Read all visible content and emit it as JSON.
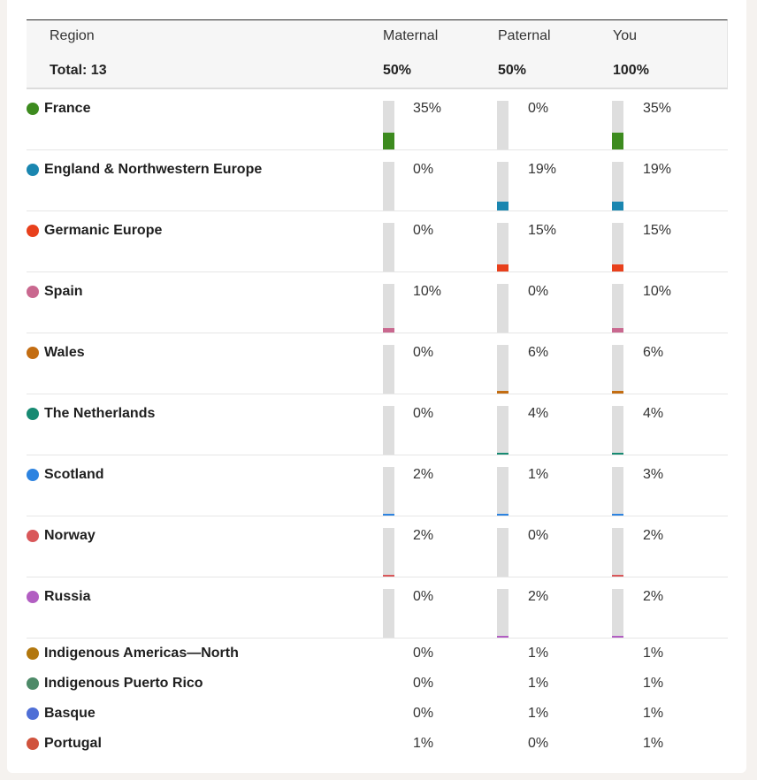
{
  "header": {
    "region_label": "Region",
    "maternal_label": "Maternal",
    "paternal_label": "Paternal",
    "you_label": "You",
    "total_label": "Total: 13",
    "maternal_total": "50%",
    "paternal_total": "50%",
    "you_total": "100%"
  },
  "rows": [
    {
      "name": "France",
      "color": "#3d8b1f",
      "maternal": "35%",
      "paternal": "0%",
      "you": "35%",
      "m": 35,
      "p": 0,
      "y": 35
    },
    {
      "name": "England & Northwestern Europe",
      "color": "#1a86b0",
      "maternal": "0%",
      "paternal": "19%",
      "you": "19%",
      "m": 0,
      "p": 19,
      "y": 19
    },
    {
      "name": "Germanic Europe",
      "color": "#e8401c",
      "maternal": "0%",
      "paternal": "15%",
      "you": "15%",
      "m": 0,
      "p": 15,
      "y": 15
    },
    {
      "name": "Spain",
      "color": "#c9688f",
      "maternal": "10%",
      "paternal": "0%",
      "you": "10%",
      "m": 10,
      "p": 0,
      "y": 10
    },
    {
      "name": "Wales",
      "color": "#c36d12",
      "maternal": "0%",
      "paternal": "6%",
      "you": "6%",
      "m": 0,
      "p": 6,
      "y": 6
    },
    {
      "name": "The Netherlands",
      "color": "#178a72",
      "maternal": "0%",
      "paternal": "4%",
      "you": "4%",
      "m": 0,
      "p": 4,
      "y": 4
    },
    {
      "name": "Scotland",
      "color": "#2d83e0",
      "maternal": "2%",
      "paternal": "1%",
      "you": "3%",
      "m": 2,
      "p": 1,
      "y": 3
    },
    {
      "name": "Norway",
      "color": "#d9575a",
      "maternal": "2%",
      "paternal": "0%",
      "you": "2%",
      "m": 2,
      "p": 0,
      "y": 2
    },
    {
      "name": "Russia",
      "color": "#b25ec2",
      "maternal": "0%",
      "paternal": "2%",
      "you": "2%",
      "m": 0,
      "p": 2,
      "y": 2
    }
  ],
  "small_rows": [
    {
      "name": "Indigenous Americas—North",
      "color": "#b2770e",
      "maternal": "0%",
      "paternal": "1%",
      "you": "1%"
    },
    {
      "name": "Indigenous Puerto Rico",
      "color": "#4d8a68",
      "maternal": "0%",
      "paternal": "1%",
      "you": "1%"
    },
    {
      "name": "Basque",
      "color": "#4f6fd6",
      "maternal": "0%",
      "paternal": "1%",
      "you": "1%"
    },
    {
      "name": "Portugal",
      "color": "#d0533d",
      "maternal": "1%",
      "paternal": "0%",
      "you": "1%"
    }
  ]
}
